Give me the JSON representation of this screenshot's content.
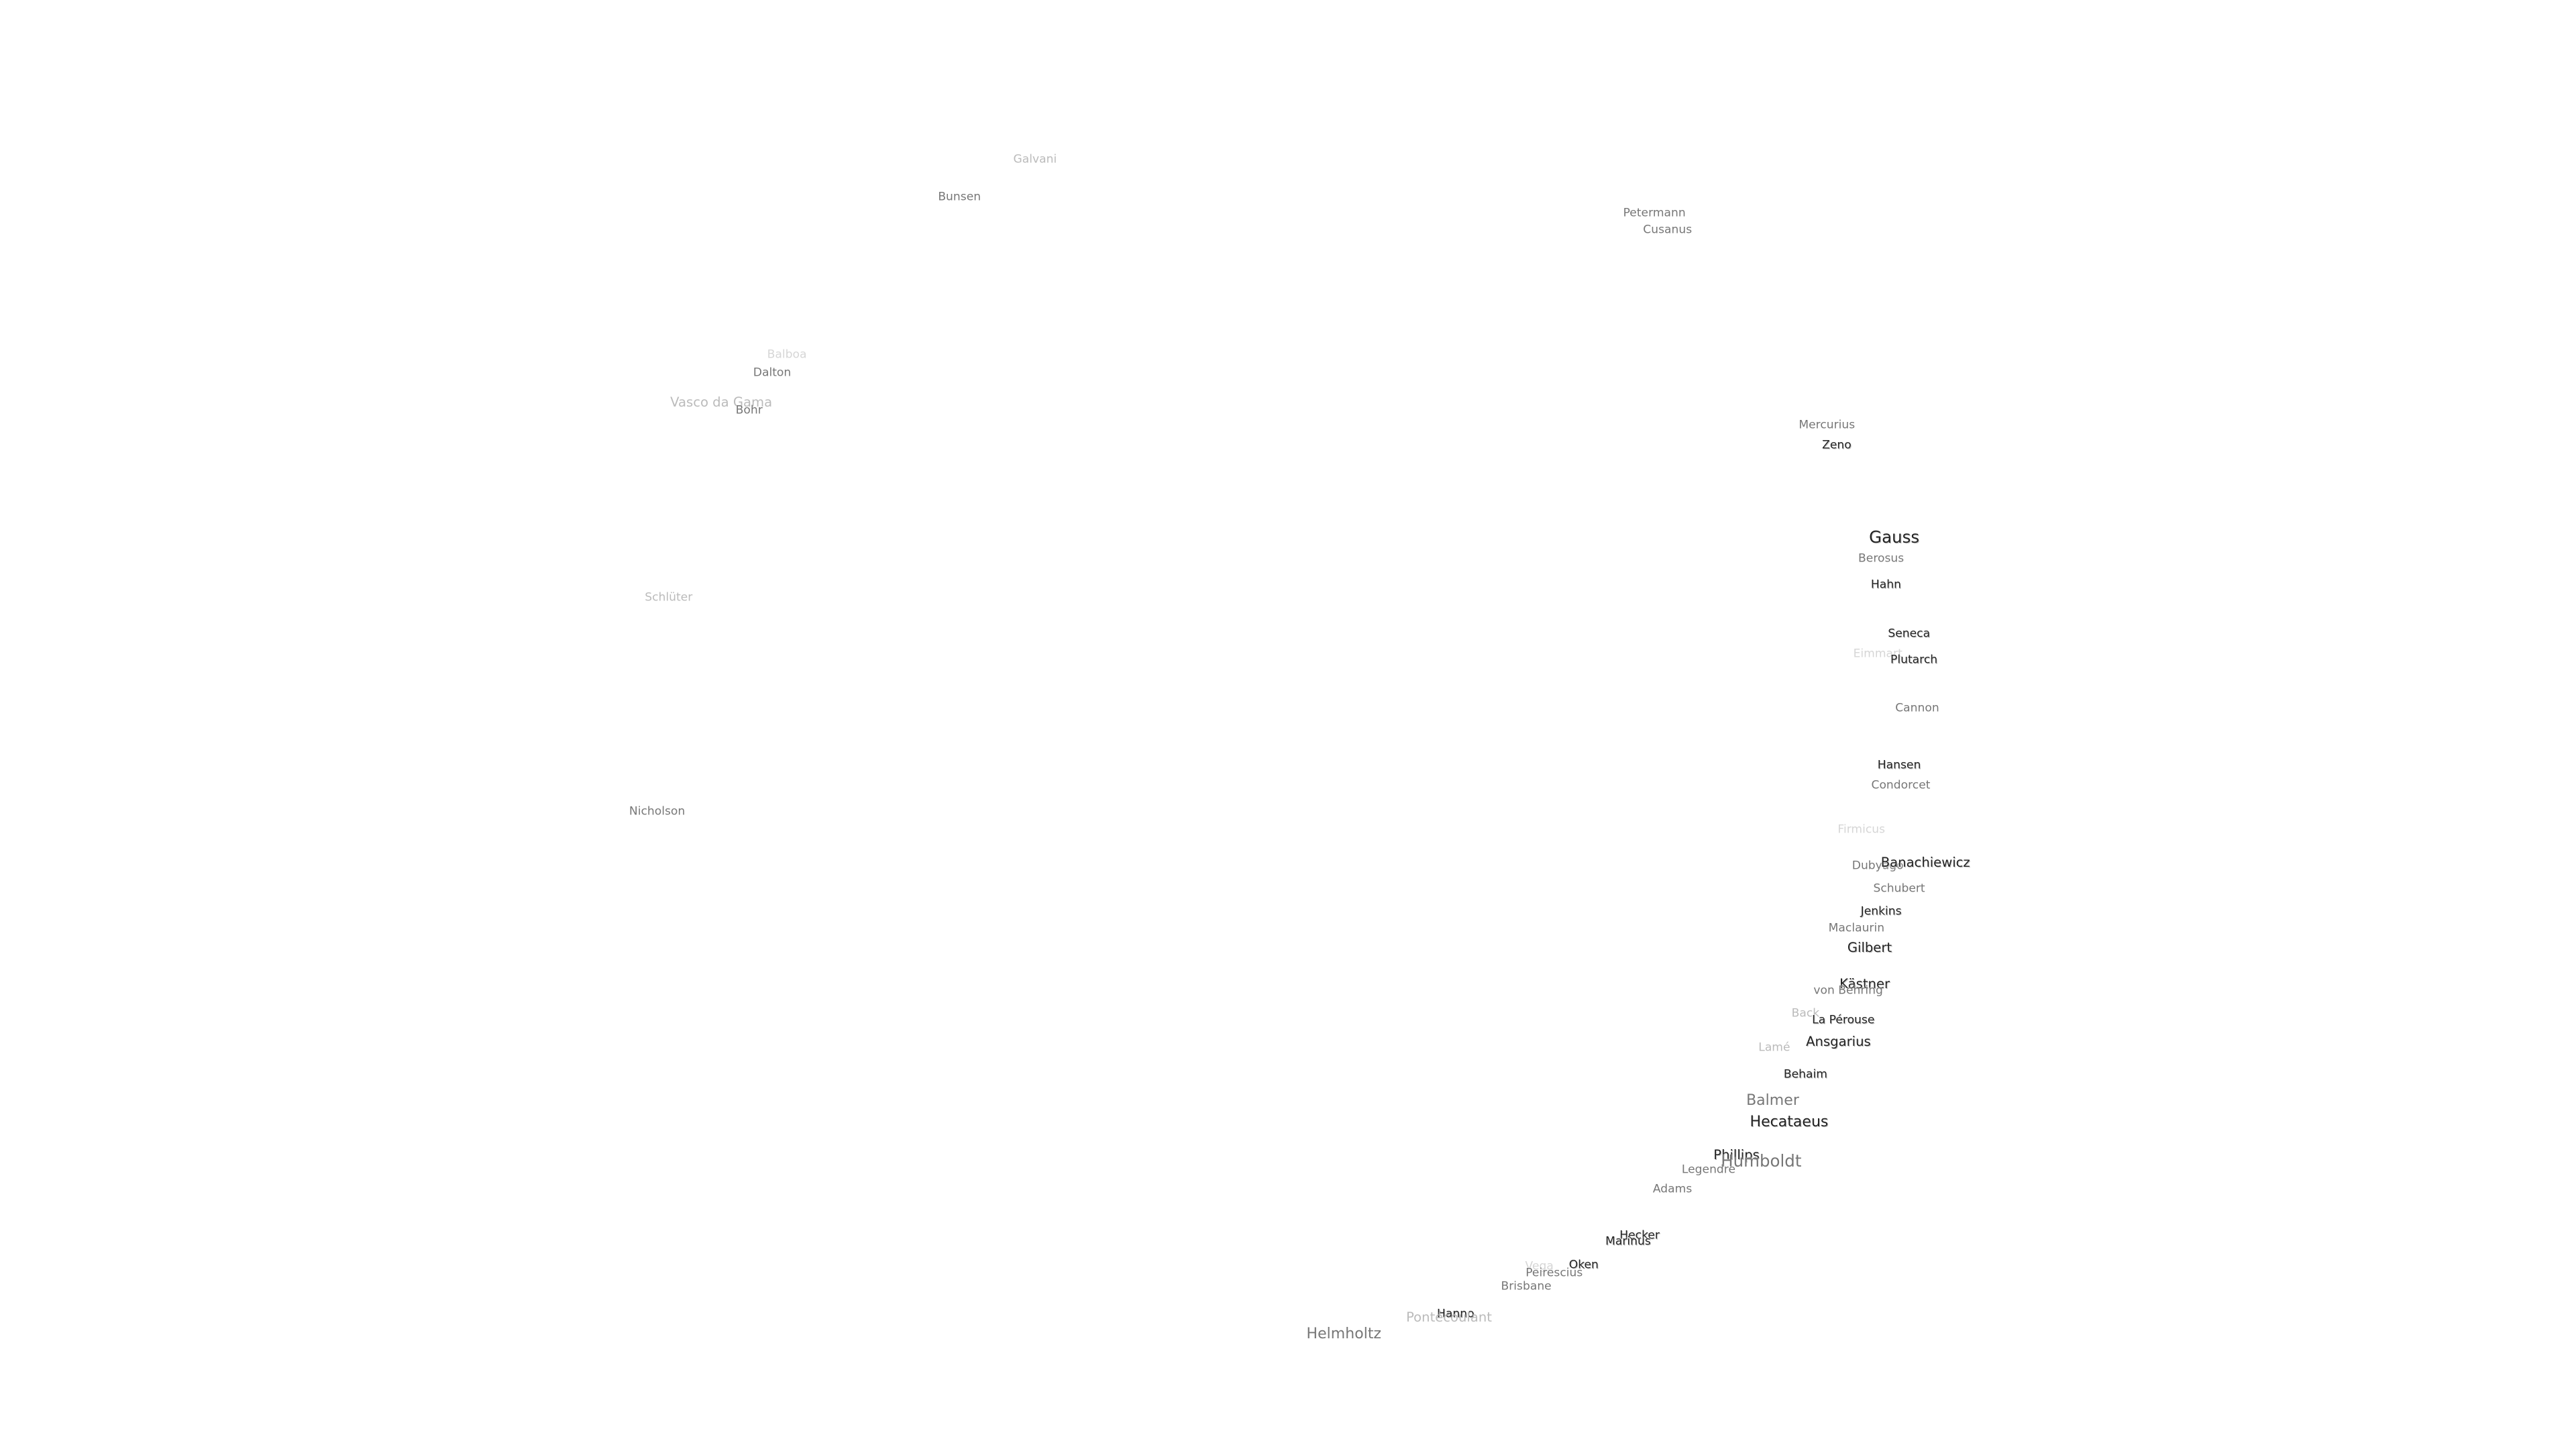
{
  "labels": [
    "Galvani",
    "Bunsen",
    "Petermann",
    "Cusanus",
    "Balboa",
    "Dalton",
    "Vasco da Gama",
    "Bohr",
    "Mercurius",
    "Zeno",
    "Gauss",
    "Berosus",
    "Hahn",
    "Schlüter",
    "Seneca",
    "Eimmart",
    "Plutarch",
    "Cannon",
    "Hansen",
    "Condorcet",
    "Nicholson",
    "Firmicus",
    "Dubyago",
    "Banachiewicz",
    "Schubert",
    "Jenkins",
    "Maclaurin",
    "Gilbert",
    "Kästner",
    "von Behring",
    "Back",
    "La Pérouse",
    "Ansgarius",
    "Lamé",
    "Behaim",
    "Balmer",
    "Hecataeus",
    "Phillips",
    "Humboldt",
    "Legendre",
    "Adams",
    "Hecker",
    "Marinus",
    "Vega",
    "Oken",
    "Peirescius",
    "Brisbane",
    "Hanno",
    "Pontécoulant",
    "Helmholtz"
  ]
}
